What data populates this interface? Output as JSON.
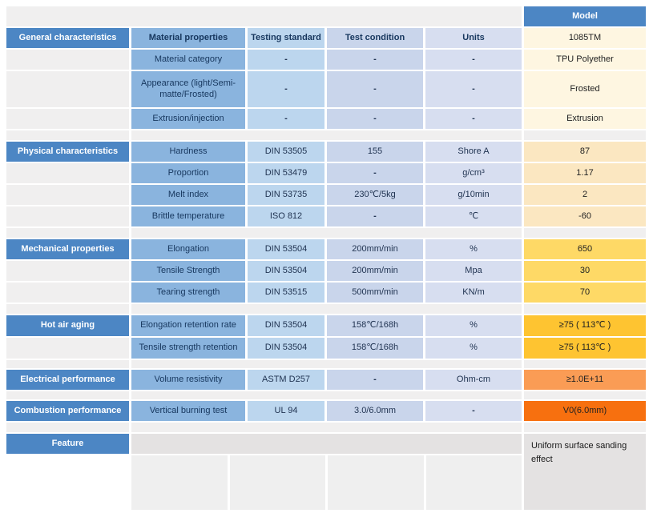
{
  "model_column": {
    "header": "Model"
  },
  "header_row": {
    "category": "General characteristics",
    "property": "Material properties",
    "standard": "Testing standard",
    "condition": "Test condition",
    "units": "Units",
    "value": "1085TM"
  },
  "sections": [
    {
      "id": "general",
      "category": null,
      "value_color": "#FEF6E1",
      "rows": [
        {
          "property": "Material category",
          "standard": "-",
          "condition": "-",
          "units": "-",
          "value": "TPU Polyether"
        },
        {
          "property": "Appearance (light/Semi-matte/Frosted)",
          "standard": "-",
          "condition": "-",
          "units": "-",
          "value": "Frosted",
          "tall": true
        },
        {
          "property": "Extrusion/injection",
          "standard": "-",
          "condition": "-",
          "units": "-",
          "value": "Extrusion"
        }
      ]
    },
    {
      "id": "physical",
      "category": "Physical characteristics",
      "value_color": "#FBE7C1",
      "rows": [
        {
          "property": "Hardness",
          "standard": "DIN 53505",
          "condition": "155",
          "units": "Shore A",
          "value": "87"
        },
        {
          "property": "Proportion",
          "standard": "DIN 53479",
          "condition": "-",
          "units": "g/cm³",
          "value": "1.17"
        },
        {
          "property": "Melt index",
          "standard": "DIN 53735",
          "condition": "230℃/5kg",
          "units": "g/10min",
          "value": "2"
        },
        {
          "property": "Brittle temperature",
          "standard": "ISO 812",
          "condition": "-",
          "units": "℃",
          "value": "-60"
        }
      ]
    },
    {
      "id": "mechanical",
      "category": "Mechanical properties",
      "value_color": "#FED966",
      "rows": [
        {
          "property": "Elongation",
          "standard": "DIN 53504",
          "condition": "200mm/min",
          "units": "%",
          "value": "650"
        },
        {
          "property": "Tensile Strength",
          "standard": "DIN 53504",
          "condition": "200mm/min",
          "units": "Mpa",
          "value": "30"
        },
        {
          "property": "Tearing strength",
          "standard": "DIN 53515",
          "condition": "500mm/min",
          "units": "KN/m",
          "value": "70"
        }
      ]
    },
    {
      "id": "hot_air",
      "category": "Hot air aging",
      "value_color": "#FEC431",
      "rows": [
        {
          "property": "Elongation retention rate",
          "standard": "DIN 53504",
          "condition": "158℃/168h",
          "units": "%",
          "value": "≥75 ( 113℃ )"
        },
        {
          "property": "Tensile strength retention",
          "standard": "DIN 53504",
          "condition": "158℃/168h",
          "units": "%",
          "value": "≥75 ( 113℃ )"
        }
      ]
    },
    {
      "id": "electrical",
      "category": "Electrical performance",
      "value_color": "#FA9C55",
      "rows": [
        {
          "property": "Volume resistivity",
          "standard": "ASTM D257",
          "condition": "-",
          "units": "Ohm-cm",
          "value": "≥1.0E+11"
        }
      ]
    },
    {
      "id": "combustion",
      "category": "Combustion performance",
      "value_color": "#F7700F",
      "rows": [
        {
          "property": "Vertical burning test",
          "standard": "UL 94",
          "condition": "3.0/6.0mm",
          "units": "-",
          "value": "V0(6.0mm)"
        }
      ]
    }
  ],
  "feature": {
    "label": "Feature",
    "value": "Uniform surface sanding effect"
  },
  "colors": {
    "accent_blue": "#4C86C4",
    "property_blue": "#8AB4DE",
    "standard_blue": "#BCD6EE",
    "condition_blue": "#C9D5EB",
    "units_blue": "#D7DEF0",
    "empty_gray": "#F0EFEF",
    "feature_gray": "#E4E2E2",
    "general_value": "#FEF6E1",
    "physical_value": "#FBE7C1",
    "mechanical_value": "#FED966",
    "hot_air_value": "#FEC431",
    "electrical_value": "#FA9C55",
    "combustion_value": "#F7700F"
  }
}
